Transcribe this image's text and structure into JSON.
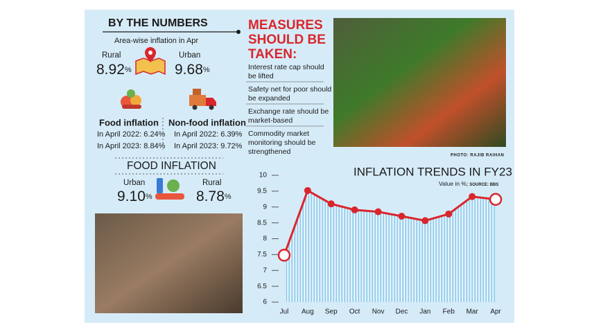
{
  "left": {
    "title": "BY THE NUMBERS",
    "subtitle": "Area-wise inflation in Apr",
    "rural": {
      "label": "Rural",
      "value": "8.92",
      "unit": "%"
    },
    "urban": {
      "label": "Urban",
      "value": "9.68",
      "unit": "%"
    },
    "food": {
      "title": "Food inflation",
      "lines": [
        "In April 2022: 6.24%",
        "In April 2023: 8.84%"
      ]
    },
    "nonfood": {
      "title": "Non-food inflation",
      "lines": [
        "In April 2022: 6.39%",
        "In April 2023: 9.72%"
      ]
    },
    "food_inflation": {
      "title": "FOOD INFLATION",
      "urban": {
        "label": "Urban",
        "value": "9.10",
        "unit": "%"
      },
      "rural": {
        "label": "Rural",
        "value": "8.78",
        "unit": "%"
      }
    }
  },
  "measures": {
    "title": [
      "MEASURES",
      "SHOULD BE",
      "TAKEN:"
    ],
    "items": [
      [
        "Interest rate cap should",
        "be lifted"
      ],
      [
        "Safety net for poor should",
        "be expanded"
      ],
      [
        "Exchange rate should be",
        "market-based"
      ],
      [
        "Commodity market",
        "monitoring should be",
        "strengthened"
      ]
    ]
  },
  "photo_credit": "PHOTO: RAJIB RAIHAN",
  "chart_data": {
    "type": "line",
    "title": "INFLATION TRENDS IN FY23",
    "subtitle": "Value in %;",
    "source": "SOURCE: BBS",
    "categories": [
      "Jul",
      "Aug",
      "Sep",
      "Oct",
      "Nov",
      "Dec",
      "Jan",
      "Feb",
      "Mar",
      "Apr"
    ],
    "values": [
      7.48,
      9.52,
      9.1,
      8.91,
      8.85,
      8.71,
      8.57,
      8.78,
      9.33,
      9.24
    ],
    "color": "#d9262c",
    "fill": "#9fd2ef",
    "ylim": [
      6,
      10
    ],
    "yticks": [
      6,
      6.5,
      7,
      7.5,
      8,
      8.5,
      9,
      9.5,
      10
    ]
  }
}
